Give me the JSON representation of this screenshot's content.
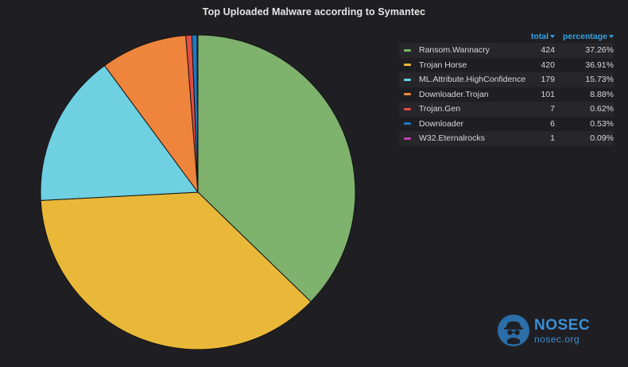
{
  "panel": {
    "title": "Top Uploaded Malware according to Symantec"
  },
  "legend": {
    "header_total": "total",
    "header_percentage": "percentage"
  },
  "chart_data": {
    "type": "pie",
    "title": "Top Uploaded Malware according to Symantec",
    "legend_placement": "right",
    "slices": [
      {
        "label": "Ransom.Wannacry",
        "value": 424,
        "value_text": "424",
        "percent_text": "37.26%",
        "color": "#7eb26d"
      },
      {
        "label": "Trojan Horse",
        "value": 420,
        "value_text": "420",
        "percent_text": "36.91%",
        "color": "#eab839"
      },
      {
        "label": "ML.Attribute.HighConfidence",
        "value": 179,
        "value_text": "179",
        "percent_text": "15.73%",
        "color": "#6ed0e0"
      },
      {
        "label": "Downloader.Trojan",
        "value": 101,
        "value_text": "101",
        "percent_text": "8.88%",
        "color": "#ef843c"
      },
      {
        "label": "Trojan.Gen",
        "value": 7,
        "value_text": "7",
        "percent_text": "0.62%",
        "color": "#e24d42"
      },
      {
        "label": "Downloader",
        "value": 6,
        "value_text": "6",
        "percent_text": "0.53%",
        "color": "#1f78c1"
      },
      {
        "label": "W32.Eternalrocks",
        "value": 1,
        "value_text": "1",
        "percent_text": "0.09%",
        "color": "#ba43a9"
      }
    ]
  },
  "watermark": {
    "name": "NOSEC",
    "domain": "nosec.org",
    "color": "#3b8fd4"
  }
}
